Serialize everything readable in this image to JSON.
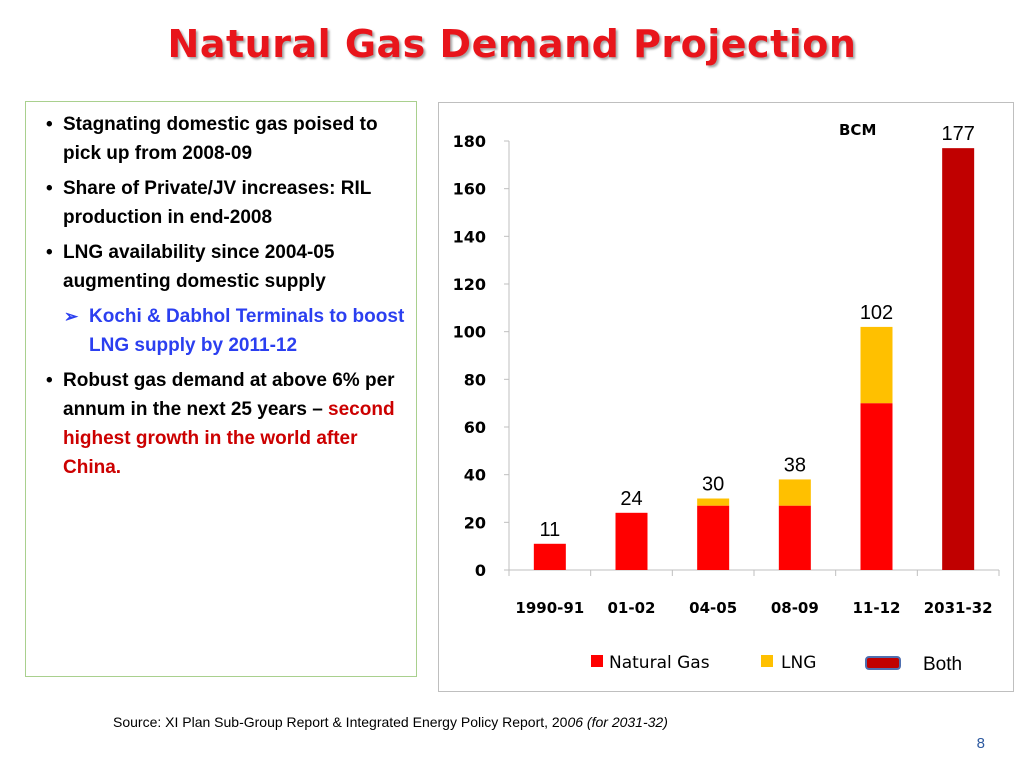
{
  "title": "Natural Gas Demand Projection",
  "bullets": {
    "b1": "Stagnating domestic gas poised to pick up from 2008-09",
    "b2": " Share of Private/JV increases: RIL production in end-2008",
    "b3": " LNG availability since 2004-05 augmenting domestic supply",
    "sub1": "Kochi & Dabhol Terminals to  boost LNG supply by 2011-12",
    "b4_black": " Robust  gas demand at above 6% per annum in the next 25 years – ",
    "b4_red": "second highest growth in the world after China.",
    "bullet_char": "•",
    "arrow_char": "➢"
  },
  "chart_data": {
    "type": "bar",
    "unit_label": "BCM",
    "categories": [
      "1990-91",
      "01-02",
      "04-05",
      "08-09",
      "11-12",
      "2031-32"
    ],
    "series": [
      {
        "name": "Natural Gas",
        "color": "#ff0000",
        "values": [
          11,
          24,
          27,
          27,
          70,
          0
        ]
      },
      {
        "name": "LNG",
        "color": "#ffc000",
        "values": [
          0,
          0,
          3,
          11,
          32,
          0
        ]
      },
      {
        "name": "Both",
        "color": "#c00000",
        "values": [
          0,
          0,
          0,
          0,
          0,
          177
        ]
      }
    ],
    "totals": [
      11,
      24,
      30,
      38,
      102,
      177
    ],
    "total_labels": [
      "11",
      "24",
      "30",
      "38",
      "102",
      "177"
    ],
    "yticks": [
      "0",
      "20",
      "40",
      "60",
      "80",
      "100",
      "120",
      "140",
      "160",
      "180"
    ],
    "ylim": [
      0,
      180
    ],
    "grid": false,
    "legend_position": "bottom"
  },
  "source": {
    "main": "Source: XI Plan Sub-Group Report &  Integrated Energy Policy Report, 20",
    "italic": "06 (for 2031-32)"
  },
  "page_number": "8"
}
